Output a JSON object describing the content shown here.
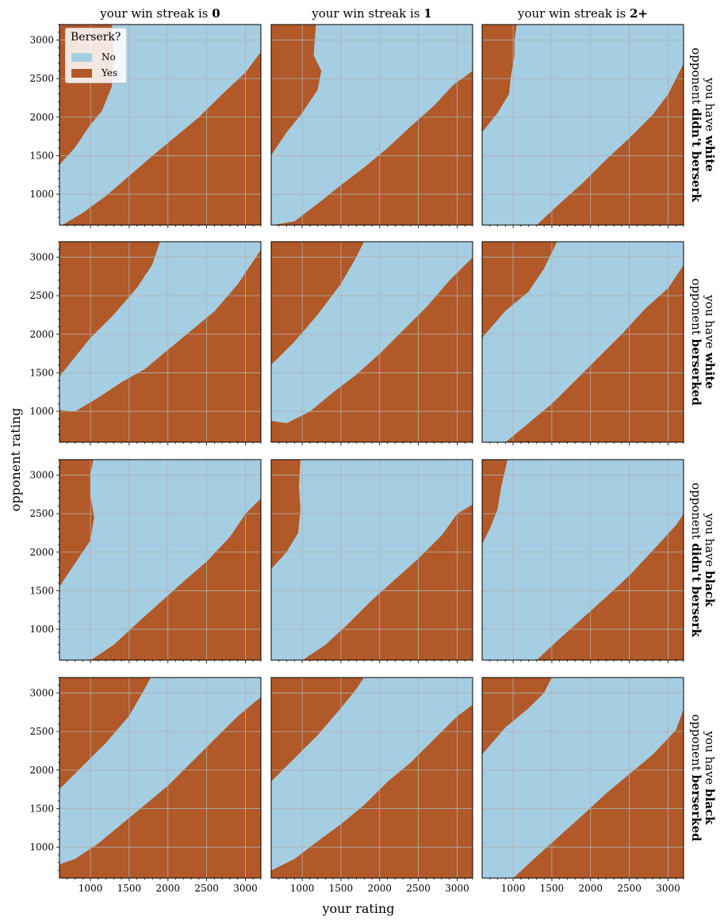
{
  "chart_data": {
    "type": "heatmap",
    "xlabel": "your rating",
    "ylabel": "opponent rating",
    "xlim": [
      600,
      3200
    ],
    "ylim": [
      600,
      3200
    ],
    "x_ticks": [
      1000,
      1500,
      2000,
      2500,
      3000
    ],
    "y_ticks": [
      1000,
      1500,
      2000,
      2500,
      3000
    ],
    "grid": true,
    "legend": {
      "title": "Berserk?",
      "placement": "top-left",
      "entries": [
        {
          "label": "No",
          "color": "#a6cee3"
        },
        {
          "label": "Yes",
          "color": "#b15928"
        }
      ]
    },
    "columns": [
      {
        "prefix": "your win streak is ",
        "value": "0"
      },
      {
        "prefix": "your win streak is ",
        "value": "1"
      },
      {
        "prefix": "your win streak is ",
        "value": "2+"
      }
    ],
    "rows": [
      {
        "line1_prefix": "you have ",
        "line1_bold": "white",
        "line2_prefix": "opponent ",
        "line2_bold": "didn't berserk"
      },
      {
        "line1_prefix": "you have ",
        "line1_bold": "white",
        "line2_prefix": "opponent ",
        "line2_bold": "berserked"
      },
      {
        "line1_prefix": "you have ",
        "line1_bold": "black",
        "line2_prefix": "opponent ",
        "line2_bold": "didn't berserk"
      },
      {
        "line1_prefix": "you have ",
        "line1_bold": "black",
        "line2_prefix": "opponent ",
        "line2_bold": "berserked"
      }
    ],
    "panels": [
      [
        {
          "upper": [
            [
              600,
              1380
            ],
            [
              800,
              1600
            ],
            [
              1000,
              1900
            ],
            [
              1150,
              2080
            ],
            [
              1280,
              2400
            ],
            [
              1300,
              2750
            ],
            [
              1280,
              3200
            ]
          ],
          "lower": [
            [
              600,
              580
            ],
            [
              900,
              760
            ],
            [
              1200,
              980
            ],
            [
              1500,
              1240
            ],
            [
              1800,
              1500
            ],
            [
              2100,
              1750
            ],
            [
              2400,
              2000
            ],
            [
              2700,
              2300
            ],
            [
              3000,
              2580
            ],
            [
              3200,
              2850
            ]
          ]
        },
        {
          "upper": [
            [
              600,
              1500
            ],
            [
              800,
              1800
            ],
            [
              1000,
              2050
            ],
            [
              1200,
              2350
            ],
            [
              1250,
              2600
            ],
            [
              1150,
              2800
            ],
            [
              1180,
              3200
            ]
          ],
          "lower": [
            [
              600,
              600
            ],
            [
              900,
              650
            ],
            [
              1200,
              880
            ],
            [
              1500,
              1120
            ],
            [
              1800,
              1350
            ],
            [
              2100,
              1600
            ],
            [
              2400,
              1880
            ],
            [
              2700,
              2150
            ],
            [
              2950,
              2420
            ],
            [
              3200,
              2600
            ]
          ]
        },
        {
          "upper": [
            [
              600,
              1800
            ],
            [
              800,
              2050
            ],
            [
              950,
              2300
            ],
            [
              970,
              2500
            ],
            [
              1020,
              2800
            ],
            [
              1020,
              3000
            ],
            [
              1050,
              3200
            ]
          ],
          "lower": [
            [
              1300,
              600
            ],
            [
              1600,
              880
            ],
            [
              1900,
              1150
            ],
            [
              2200,
              1450
            ],
            [
              2500,
              1730
            ],
            [
              2800,
              2030
            ],
            [
              3000,
              2300
            ],
            [
              3200,
              2700
            ]
          ]
        }
      ],
      [
        {
          "upper": [
            [
              600,
              1450
            ],
            [
              800,
              1700
            ],
            [
              1000,
              1950
            ],
            [
              1300,
              2250
            ],
            [
              1600,
              2600
            ],
            [
              1800,
              2900
            ],
            [
              1900,
              3200
            ]
          ],
          "lower": [
            [
              600,
              1020
            ],
            [
              800,
              1000
            ],
            [
              1100,
              1180
            ],
            [
              1400,
              1380
            ],
            [
              1700,
              1550
            ],
            [
              2000,
              1800
            ],
            [
              2300,
              2050
            ],
            [
              2600,
              2300
            ],
            [
              2900,
              2650
            ],
            [
              3200,
              3100
            ]
          ]
        },
        {
          "upper": [
            [
              600,
              1600
            ],
            [
              900,
              1900
            ],
            [
              1200,
              2250
            ],
            [
              1500,
              2650
            ],
            [
              1700,
              3000
            ],
            [
              1800,
              3200
            ]
          ],
          "lower": [
            [
              600,
              880
            ],
            [
              800,
              850
            ],
            [
              1100,
              1000
            ],
            [
              1400,
              1250
            ],
            [
              1700,
              1480
            ],
            [
              2000,
              1750
            ],
            [
              2300,
              2050
            ],
            [
              2600,
              2350
            ],
            [
              2900,
              2700
            ],
            [
              3200,
              3000
            ]
          ]
        },
        {
          "upper": [
            [
              600,
              1950
            ],
            [
              900,
              2300
            ],
            [
              1200,
              2550
            ],
            [
              1400,
              2850
            ],
            [
              1570,
              3200
            ]
          ],
          "lower": [
            [
              900,
              600
            ],
            [
              1200,
              850
            ],
            [
              1500,
              1100
            ],
            [
              1800,
              1400
            ],
            [
              2100,
              1700
            ],
            [
              2400,
              2000
            ],
            [
              2700,
              2330
            ],
            [
              3000,
              2600
            ],
            [
              3200,
              2900
            ]
          ]
        }
      ],
      [
        {
          "upper": [
            [
              600,
              1550
            ],
            [
              800,
              1850
            ],
            [
              1000,
              2150
            ],
            [
              1050,
              2450
            ],
            [
              1000,
              2750
            ],
            [
              1000,
              3000
            ],
            [
              1040,
              3200
            ]
          ],
          "lower": [
            [
              1000,
              600
            ],
            [
              1300,
              800
            ],
            [
              1600,
              1080
            ],
            [
              1900,
              1350
            ],
            [
              2200,
              1620
            ],
            [
              2500,
              1880
            ],
            [
              2800,
              2200
            ],
            [
              3000,
              2500
            ],
            [
              3200,
              2700
            ]
          ]
        },
        {
          "upper": [
            [
              600,
              1780
            ],
            [
              800,
              2000
            ],
            [
              950,
              2250
            ],
            [
              980,
              2550
            ],
            [
              960,
              2850
            ],
            [
              980,
              3200
            ]
          ],
          "lower": [
            [
              1000,
              600
            ],
            [
              1300,
              800
            ],
            [
              1600,
              1080
            ],
            [
              1900,
              1380
            ],
            [
              2200,
              1650
            ],
            [
              2500,
              1920
            ],
            [
              2800,
              2220
            ],
            [
              3000,
              2500
            ],
            [
              3200,
              2620
            ]
          ]
        },
        {
          "upper": [
            [
              600,
              2100
            ],
            [
              700,
              2300
            ],
            [
              800,
              2550
            ],
            [
              850,
              2850
            ],
            [
              930,
              3200
            ]
          ],
          "lower": [
            [
              1300,
              600
            ],
            [
              1600,
              880
            ],
            [
              1900,
              1150
            ],
            [
              2200,
              1420
            ],
            [
              2500,
              1700
            ],
            [
              2800,
              2020
            ],
            [
              3100,
              2350
            ],
            [
              3200,
              2500
            ]
          ]
        }
      ],
      [
        {
          "upper": [
            [
              600,
              1750
            ],
            [
              900,
              2050
            ],
            [
              1200,
              2350
            ],
            [
              1500,
              2700
            ],
            [
              1700,
              3050
            ],
            [
              1780,
              3200
            ]
          ],
          "lower": [
            [
              600,
              780
            ],
            [
              800,
              850
            ],
            [
              1100,
              1050
            ],
            [
              1400,
              1300
            ],
            [
              1700,
              1550
            ],
            [
              2000,
              1800
            ],
            [
              2300,
              2100
            ],
            [
              2600,
              2400
            ],
            [
              2900,
              2700
            ],
            [
              3200,
              2950
            ]
          ]
        },
        {
          "upper": [
            [
              600,
              1850
            ],
            [
              900,
              2150
            ],
            [
              1200,
              2450
            ],
            [
              1500,
              2800
            ],
            [
              1700,
              3050
            ],
            [
              1800,
              3200
            ]
          ],
          "lower": [
            [
              600,
              700
            ],
            [
              900,
              850
            ],
            [
              1200,
              1080
            ],
            [
              1500,
              1300
            ],
            [
              1800,
              1550
            ],
            [
              2100,
              1850
            ],
            [
              2400,
              2100
            ],
            [
              2700,
              2400
            ],
            [
              3000,
              2700
            ],
            [
              3200,
              2850
            ]
          ]
        },
        {
          "upper": [
            [
              600,
              2200
            ],
            [
              900,
              2550
            ],
            [
              1200,
              2800
            ],
            [
              1400,
              3000
            ],
            [
              1500,
              3200
            ]
          ],
          "lower": [
            [
              1000,
              600
            ],
            [
              1300,
              880
            ],
            [
              1600,
              1150
            ],
            [
              1900,
              1420
            ],
            [
              2200,
              1700
            ],
            [
              2500,
              1950
            ],
            [
              2800,
              2200
            ],
            [
              3100,
              2520
            ],
            [
              3200,
              2800
            ]
          ]
        }
      ]
    ]
  }
}
